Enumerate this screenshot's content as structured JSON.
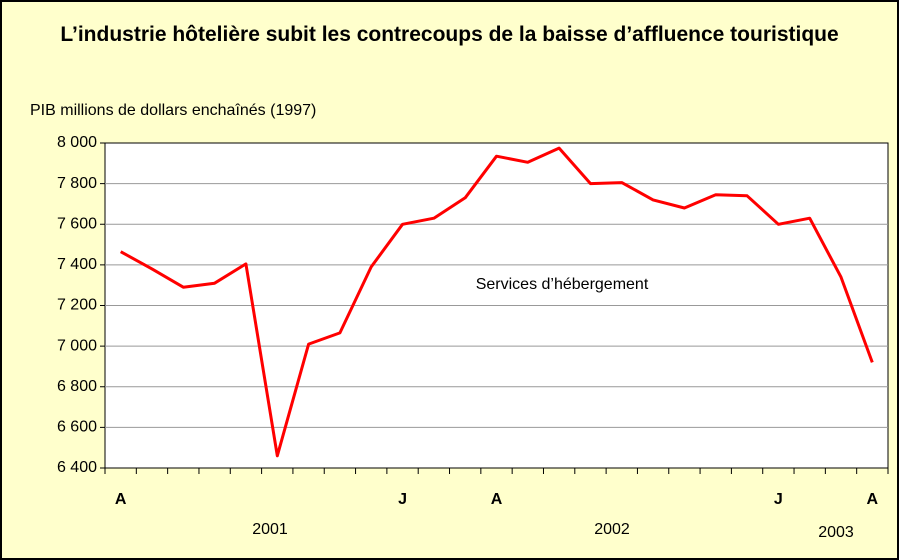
{
  "chart_data": {
    "type": "line",
    "title": "L’industrie hôtelière subit les contrecoups de la baisse d’affluence touristique",
    "y_label": "PIB millions de dollars enchaînés (1997)",
    "annotation": "Services d’hébergement",
    "years": [
      "2001",
      "2002",
      "2003"
    ],
    "categories": [
      "A",
      null,
      null,
      null,
      null,
      null,
      null,
      null,
      null,
      "J",
      null,
      null,
      "A",
      null,
      null,
      null,
      null,
      null,
      null,
      null,
      null,
      "J",
      null,
      null,
      "A"
    ],
    "series": [
      {
        "name": "Services d’hébergement",
        "color": "#ff0000",
        "values": [
          7465,
          7380,
          7290,
          7310,
          7405,
          6460,
          7010,
          7065,
          7390,
          7600,
          7630,
          7730,
          7935,
          7905,
          7975,
          7800,
          7805,
          7720,
          7680,
          7745,
          7740,
          7600,
          7630,
          7340,
          6920
        ]
      }
    ],
    "ylim": [
      6400,
      8000
    ],
    "yticks": [
      {
        "value": 6400,
        "label": "6 400"
      },
      {
        "value": 6600,
        "label": "6 600"
      },
      {
        "value": 6800,
        "label": "6 800"
      },
      {
        "value": 7000,
        "label": "7 000"
      },
      {
        "value": 7200,
        "label": "7 200"
      },
      {
        "value": 7400,
        "label": "7 400"
      },
      {
        "value": 7600,
        "label": "7 600"
      },
      {
        "value": 7800,
        "label": "7 800"
      },
      {
        "value": 8000,
        "label": "8 000"
      }
    ],
    "grid": true
  }
}
